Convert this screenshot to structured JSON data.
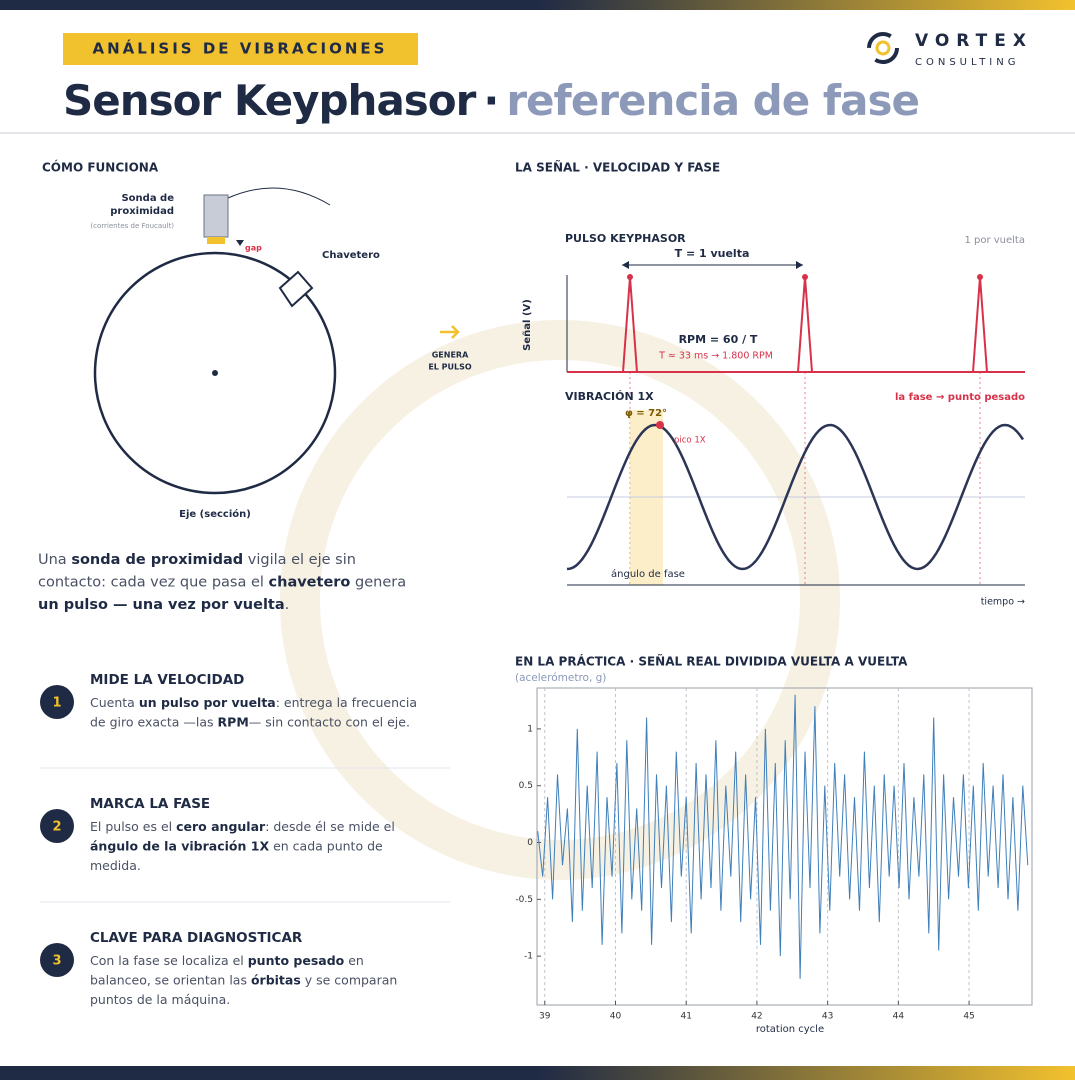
{
  "header": {
    "tag": "ANÁLISIS DE VIBRACIONES",
    "title_main": "Sensor Keyphasor",
    "title_dot": "·",
    "title_accent": "referencia de fase"
  },
  "logo": {
    "name": "VORTEX",
    "tagline": "CONSULTING"
  },
  "how": {
    "heading": "CÓMO FUNCIONA",
    "probe_label": [
      "Sonda de",
      "proximidad"
    ],
    "probe_note": "(corrientes de Foucault)",
    "gap": "gap",
    "keyway": "Chavetero",
    "shaft": "Eje (sección)",
    "arrow_label": [
      "GENERA",
      "EL PULSO"
    ]
  },
  "intro": [
    [
      {
        "text": "Una "
      },
      {
        "text": "sonda de proximidad",
        "bold": true
      },
      {
        "text": " vigila el eje sin"
      }
    ],
    [
      {
        "text": "contacto: cada vez que pasa el "
      },
      {
        "text": "chavetero",
        "bold": true
      },
      {
        "text": " genera"
      }
    ],
    [
      {
        "text": "un pulso — una vez por vuelta",
        "bold": true
      },
      {
        "text": "."
      }
    ]
  ],
  "items": [
    {
      "number": 1,
      "title": "MIDE LA VELOCIDAD",
      "lines": [
        [
          {
            "text": "Cuenta "
          },
          {
            "text": "un pulso por vuelta",
            "bold": true
          },
          {
            "text": ": entrega la frecuencia"
          }
        ],
        [
          {
            "text": "de giro exacta —las "
          },
          {
            "text": "RPM",
            "bold": true
          },
          {
            "text": "— sin contacto con el eje."
          }
        ]
      ]
    },
    {
      "number": 2,
      "title": "MARCA LA FASE",
      "lines": [
        [
          {
            "text": "El pulso es el "
          },
          {
            "text": "cero angular",
            "bold": true
          },
          {
            "text": ": desde él se mide el"
          }
        ],
        [
          {
            "text": "ángulo de la vibración 1X",
            "bold": true
          },
          {
            "text": " en cada punto de"
          }
        ],
        [
          {
            "text": "medida."
          }
        ]
      ]
    },
    {
      "number": 3,
      "title": "CLAVE PARA DIAGNOSTICAR",
      "lines": [
        [
          {
            "text": "Con la fase se localiza el "
          },
          {
            "text": "punto pesado",
            "bold": true
          },
          {
            "text": " en"
          }
        ],
        [
          {
            "text": "balanceo, se orientan las "
          },
          {
            "text": "órbitas",
            "bold": true
          },
          {
            "text": " y se comparan"
          }
        ],
        [
          {
            "text": "puntos de la máquina."
          }
        ]
      ]
    }
  ],
  "signal": {
    "heading": "LA SEÑAL · VELOCIDAD Y FASE",
    "pulse": {
      "heading": "PULSO KEYPHASOR",
      "note": "1 por vuelta",
      "ylabel": "Señal (V)",
      "period": "T = 1 vuelta",
      "rpm": "RPM = 60 / T",
      "rpm_calc": "T ≈ 33 ms → 1.800 RPM"
    },
    "vib": {
      "heading": "VIBRACIÓN 1X",
      "note": "la fase → punto pesado",
      "phase": "φ = 72°",
      "peak": "pico 1X",
      "angle": "ángulo de fase",
      "time": "tiempo →"
    }
  },
  "chart_data": {
    "type": "line",
    "title": "EN LA PRÁCTICA · SEÑAL REAL DIVIDIDA VUELTA A VUELTA",
    "subtitle": "(acelerómetro, g)",
    "xlabel": "rotation cycle",
    "color": "#3f7fba",
    "grid": true,
    "xlim": [
      38.89,
      45.89
    ],
    "ylim": [
      -1.43,
      1.36
    ],
    "xticks": [
      39,
      40,
      41,
      42,
      43,
      44,
      45
    ],
    "yticks": [
      -1,
      -0.5,
      0,
      0.5,
      1
    ],
    "x": [
      38.9,
      38.97,
      39.04,
      39.11,
      39.18,
      39.25,
      39.32,
      39.39,
      39.46,
      39.53,
      39.6,
      39.67,
      39.74,
      39.81,
      39.88,
      39.95,
      40.02,
      40.09,
      40.16,
      40.23,
      40.3,
      40.37,
      40.44,
      40.51,
      40.58,
      40.65,
      40.72,
      40.79,
      40.86,
      40.93,
      41.0,
      41.07,
      41.14,
      41.21,
      41.28,
      41.35,
      41.42,
      41.49,
      41.56,
      41.63,
      41.7,
      41.77,
      41.84,
      41.91,
      41.98,
      42.05,
      42.12,
      42.19,
      42.26,
      42.33,
      42.4,
      42.47,
      42.54,
      42.61,
      42.68,
      42.75,
      42.82,
      42.89,
      42.96,
      43.03,
      43.1,
      43.17,
      43.24,
      43.31,
      43.38,
      43.45,
      43.52,
      43.59,
      43.66,
      43.73,
      43.8,
      43.87,
      43.94,
      44.01,
      44.08,
      44.15,
      44.22,
      44.29,
      44.36,
      44.43,
      44.5,
      44.57,
      44.64,
      44.71,
      44.78,
      44.85,
      44.92,
      44.99,
      45.06,
      45.13,
      45.2,
      45.27,
      45.34,
      45.41,
      45.48,
      45.55,
      45.62,
      45.69,
      45.76,
      45.83
    ],
    "values": [
      0.1,
      -0.3,
      0.4,
      -0.5,
      0.6,
      -0.2,
      0.3,
      -0.7,
      1.0,
      -0.6,
      0.5,
      -0.4,
      0.8,
      -0.9,
      0.4,
      -0.3,
      0.7,
      -0.8,
      0.9,
      -0.5,
      0.3,
      -0.6,
      1.1,
      -0.9,
      0.6,
      -0.4,
      0.5,
      -0.7,
      0.8,
      -0.3,
      0.4,
      -0.8,
      0.7,
      -0.5,
      0.6,
      -0.4,
      0.9,
      -0.6,
      0.5,
      -0.3,
      0.8,
      -0.7,
      0.6,
      -0.5,
      0.4,
      -0.9,
      1.0,
      -0.6,
      0.7,
      -1.0,
      0.9,
      -0.5,
      1.3,
      -1.2,
      0.8,
      -0.4,
      1.2,
      -0.8,
      0.5,
      -0.6,
      0.7,
      -0.3,
      0.6,
      -0.5,
      0.4,
      -0.6,
      0.8,
      -0.4,
      0.5,
      -0.7,
      0.6,
      -0.3,
      0.5,
      -0.4,
      0.7,
      -0.5,
      0.4,
      -0.3,
      0.6,
      -0.8,
      1.1,
      -0.95,
      0.6,
      -0.5,
      0.4,
      -0.3,
      0.6,
      -0.4,
      0.5,
      -0.6,
      0.7,
      -0.3,
      0.5,
      -0.4,
      0.6,
      -0.5,
      0.4,
      -0.6,
      0.5,
      -0.2
    ]
  }
}
